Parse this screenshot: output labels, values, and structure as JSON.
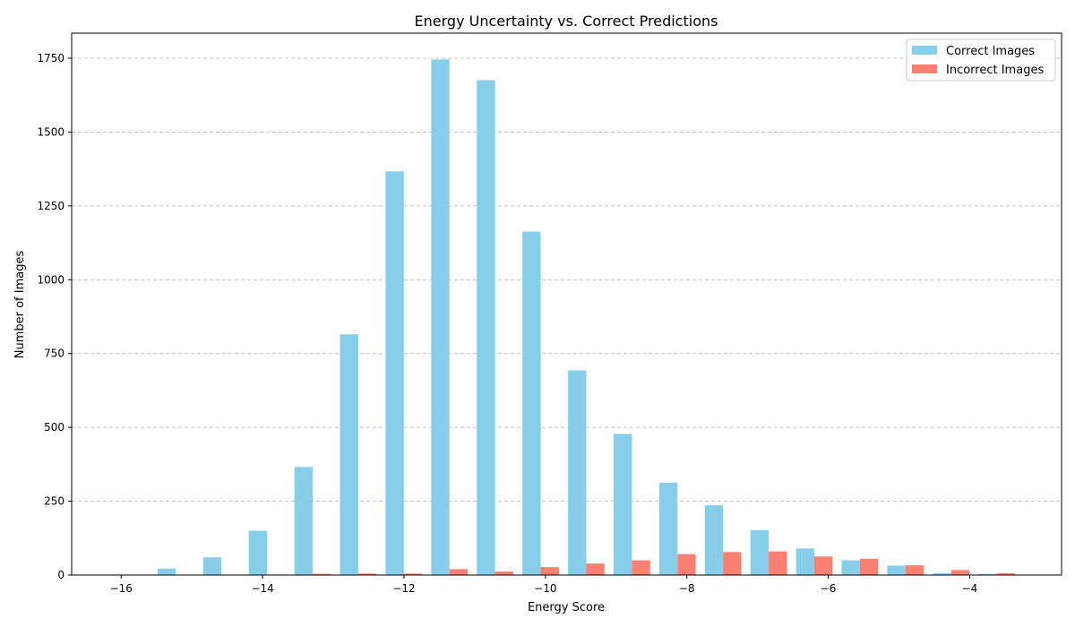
{
  "chart_data": {
    "type": "bar",
    "title": "Energy Uncertainty vs. Correct Predictions",
    "xlabel": "Energy Score",
    "ylabel": "Number of Images",
    "xlim": [
      -16.7,
      -2.7
    ],
    "ylim": [
      0,
      1835
    ],
    "xticks": [
      -16,
      -14,
      -12,
      -10,
      -8,
      -6,
      -4
    ],
    "xtick_labels": [
      "−16",
      "−14",
      "−12",
      "−10",
      "−8",
      "−6",
      "−4"
    ],
    "yticks": [
      0,
      250,
      500,
      750,
      1000,
      1250,
      1500,
      1750
    ],
    "ytick_labels": [
      "0",
      "250",
      "500",
      "750",
      "1000",
      "1250",
      "1500",
      "1750"
    ],
    "grid": "y-dashed",
    "legend_position": "top-right",
    "bin_width": 0.645,
    "bin_starts": [
      -16.13,
      -15.485,
      -14.84,
      -14.195,
      -13.55,
      -12.905,
      -12.26,
      -11.615,
      -10.97,
      -10.325,
      -9.68,
      -9.035,
      -8.39,
      -7.745,
      -7.1,
      -6.455,
      -5.81,
      -5.165,
      -4.52,
      -3.875
    ],
    "series": [
      {
        "name": "Correct Images",
        "color": "#87ceeb",
        "values": [
          2,
          22,
          60,
          150,
          366,
          815,
          1367,
          1746,
          1676,
          1163,
          693,
          478,
          313,
          236,
          152,
          90,
          50,
          32,
          6,
          4
        ]
      },
      {
        "name": "Incorrect Images",
        "color": "#fa8072",
        "values": [
          0,
          1,
          0,
          2,
          4,
          5,
          5,
          20,
          12,
          27,
          39,
          50,
          71,
          78,
          80,
          63,
          55,
          33,
          17,
          6
        ]
      }
    ]
  }
}
